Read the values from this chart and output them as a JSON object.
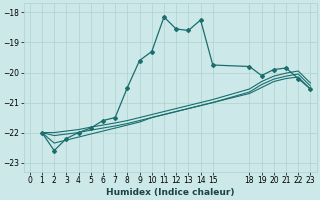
{
  "xlabel": "Humidex (Indice chaleur)",
  "bg_color": "#cce8e8",
  "grid_color": "#b0d0d0",
  "line_color": "#1a6e6e",
  "xlim": [
    -0.5,
    23.5
  ],
  "ylim": [
    -23.3,
    -17.7
  ],
  "yticks": [
    -23,
    -22,
    -21,
    -20,
    -19,
    -18
  ],
  "xticks": [
    0,
    1,
    2,
    3,
    4,
    5,
    6,
    7,
    8,
    9,
    10,
    11,
    12,
    13,
    14,
    15,
    18,
    19,
    20,
    21,
    22,
    23
  ],
  "main_series": {
    "x": [
      1,
      2,
      3,
      4,
      5,
      6,
      7,
      8,
      9,
      10,
      11,
      12,
      13,
      14,
      15,
      18,
      19,
      20,
      21,
      22,
      23
    ],
    "y": [
      -22.0,
      -22.6,
      -22.2,
      -22.0,
      -21.85,
      -21.6,
      -21.5,
      -20.5,
      -19.6,
      -19.3,
      -18.15,
      -18.55,
      -18.6,
      -18.25,
      -19.75,
      -19.8,
      -20.1,
      -19.9,
      -19.85,
      -20.2,
      -20.55
    ]
  },
  "envelope_lines": [
    {
      "x": [
        1,
        2,
        3,
        4,
        5,
        6,
        7,
        8,
        9,
        10,
        11,
        12,
        13,
        14,
        15,
        18,
        19,
        20,
        21,
        22,
        23
      ],
      "y": [
        -22.0,
        -22.0,
        -21.95,
        -21.9,
        -21.82,
        -21.75,
        -21.68,
        -21.6,
        -21.5,
        -21.4,
        -21.3,
        -21.2,
        -21.1,
        -21.0,
        -20.9,
        -20.55,
        -20.3,
        -20.12,
        -20.02,
        -19.95,
        -20.35
      ]
    },
    {
      "x": [
        1,
        2,
        3,
        4,
        5,
        6,
        7,
        8,
        9,
        10,
        11,
        12,
        13,
        14,
        15,
        18,
        19,
        20,
        21,
        22,
        23
      ],
      "y": [
        -22.0,
        -22.1,
        -22.05,
        -22.0,
        -21.92,
        -21.85,
        -21.78,
        -21.7,
        -21.6,
        -21.5,
        -21.4,
        -21.3,
        -21.2,
        -21.1,
        -21.0,
        -20.65,
        -20.4,
        -20.22,
        -20.12,
        -20.05,
        -20.45
      ]
    },
    {
      "x": [
        1,
        2,
        3,
        4,
        5,
        6,
        7,
        8,
        9,
        10,
        11,
        12,
        13,
        14,
        15,
        18,
        19,
        20,
        21,
        22,
        23
      ],
      "y": [
        -22.0,
        -22.35,
        -22.25,
        -22.15,
        -22.05,
        -21.95,
        -21.85,
        -21.75,
        -21.65,
        -21.5,
        -21.4,
        -21.3,
        -21.2,
        -21.1,
        -21.0,
        -20.7,
        -20.5,
        -20.3,
        -20.2,
        -20.15,
        -20.55
      ]
    }
  ]
}
